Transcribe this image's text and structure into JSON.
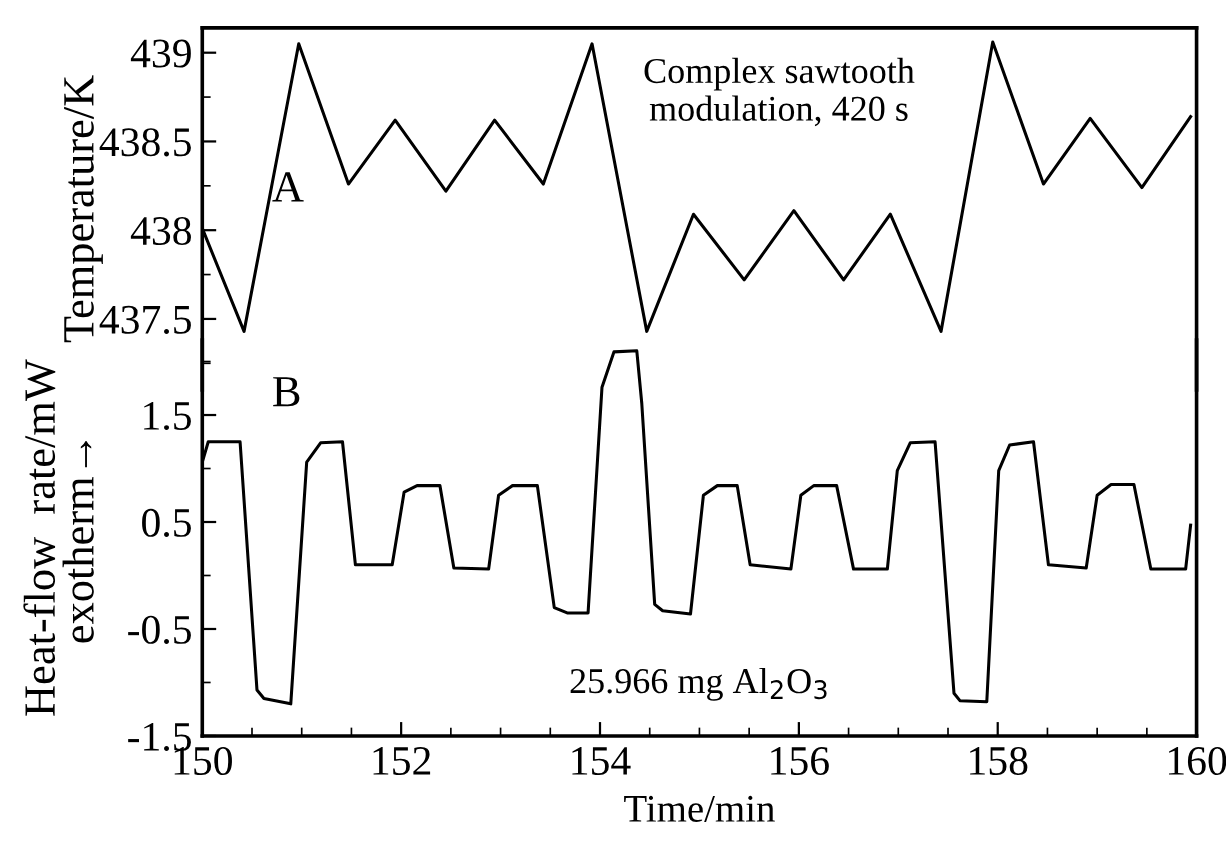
{
  "chart_data": [
    {
      "type": "line",
      "ylabel": "Temperature/K",
      "annotations": [
        "A",
        "Complex sawtooth modulation, 420 s"
      ],
      "xlim": [
        150,
        160
      ],
      "ylim": [
        437.1,
        439.14
      ],
      "yticks": [
        437.5,
        438,
        438.5,
        439
      ],
      "tick_labels": "y",
      "color": "#000000",
      "x": [
        150.0,
        150.42,
        150.97,
        151.47,
        151.94,
        152.45,
        152.94,
        153.43,
        153.92,
        154.47,
        154.94,
        155.45,
        155.95,
        156.45,
        156.92,
        157.43,
        157.95,
        158.46,
        158.93,
        159.45,
        159.94
      ],
      "values": [
        438.01,
        437.43,
        439.05,
        438.26,
        438.62,
        438.22,
        438.62,
        438.26,
        439.05,
        437.43,
        438.09,
        437.72,
        438.11,
        437.72,
        438.09,
        437.43,
        439.06,
        438.26,
        438.63,
        438.24,
        438.64
      ]
    },
    {
      "type": "line",
      "ylabel": "Heat-flow  rate/mW\nexotherm→",
      "xlabel": "Time/min",
      "annotations": [
        "B",
        "25.966 mg Al$_{2}$O$_{3}$"
      ],
      "xlim": [
        150,
        160
      ],
      "ylim": [
        -1.5,
        2.2
      ],
      "xticks": [
        150,
        152,
        154,
        156,
        158,
        160
      ],
      "yticks": [
        -1.5,
        -0.5,
        0.5,
        1.5
      ],
      "color": "#000000",
      "x": [
        150.0,
        150.06,
        150.38,
        150.55,
        150.62,
        150.89,
        151.05,
        151.19,
        151.41,
        151.54,
        151.91,
        152.03,
        152.16,
        152.39,
        152.53,
        152.88,
        152.98,
        153.12,
        153.37,
        153.54,
        153.67,
        153.88,
        154.02,
        154.14,
        154.37,
        154.42,
        154.55,
        154.63,
        154.91,
        155.04,
        155.18,
        155.38,
        155.51,
        155.92,
        156.02,
        156.15,
        156.38,
        156.55,
        156.89,
        156.99,
        157.12,
        157.37,
        157.56,
        157.62,
        157.89,
        158.01,
        158.12,
        158.36,
        158.51,
        158.89,
        159.0,
        159.14,
        159.37,
        159.54,
        159.89,
        159.94
      ],
      "values": [
        1.06,
        1.25,
        1.25,
        -1.07,
        -1.15,
        -1.2,
        1.06,
        1.24,
        1.25,
        0.1,
        0.1,
        0.78,
        0.84,
        0.84,
        0.07,
        0.06,
        0.75,
        0.84,
        0.84,
        -0.3,
        -0.35,
        -0.35,
        1.76,
        2.09,
        2.1,
        1.61,
        -0.27,
        -0.33,
        -0.36,
        0.75,
        0.84,
        0.84,
        0.1,
        0.06,
        0.75,
        0.84,
        0.84,
        0.06,
        0.06,
        0.98,
        1.24,
        1.25,
        -1.1,
        -1.17,
        -1.18,
        0.98,
        1.22,
        1.25,
        0.1,
        0.07,
        0.75,
        0.85,
        0.85,
        0.06,
        0.06,
        0.47
      ]
    }
  ]
}
